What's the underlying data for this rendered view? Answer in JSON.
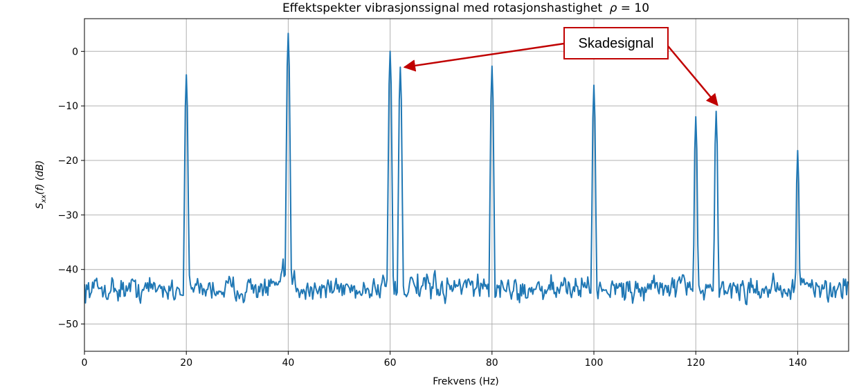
{
  "chart_data": {
    "type": "line",
    "title": "Effektspekter vibrasjonssignal med rotasjonshastighet",
    "title_symbol": "ρ",
    "title_eq": " = 10",
    "xlabel": "Frekvens (Hz)",
    "ylabel": {
      "base": "S",
      "subscript": "xx",
      "rest": "(f) (dB)"
    },
    "xlim": [
      0,
      150
    ],
    "ylim": [
      -55,
      6
    ],
    "xticks": [
      0,
      20,
      40,
      60,
      80,
      100,
      120,
      140
    ],
    "yticks": [
      0,
      -10,
      -20,
      -30,
      -40,
      -50
    ],
    "ytick_labels": [
      "0",
      "−10",
      "−20",
      "−30",
      "−40",
      "−50"
    ],
    "grid": true,
    "line_color": "#1f77b4",
    "noise_floor_db": -43.5,
    "peaks": [
      {
        "x": 20,
        "y": -4.3
      },
      {
        "x": 40,
        "y": 3.3
      },
      {
        "x": 60,
        "y": 0
      },
      {
        "x": 62,
        "y": -2.9
      },
      {
        "x": 80,
        "y": -2.7
      },
      {
        "x": 100,
        "y": -6.2
      },
      {
        "x": 120,
        "y": -12
      },
      {
        "x": 124,
        "y": -11
      },
      {
        "x": 140,
        "y": -18.2
      }
    ],
    "annotation": {
      "text": "Skadesignal",
      "color": "#c00000",
      "targets": [
        {
          "x": 62,
          "y": -2.9
        },
        {
          "x": 124,
          "y": -11
        }
      ]
    }
  }
}
